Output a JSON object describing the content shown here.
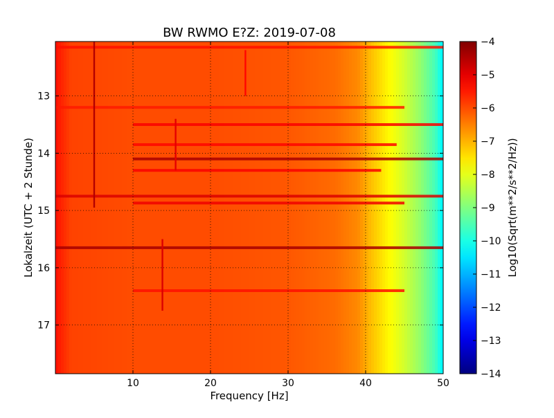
{
  "chart_data": {
    "type": "heatmap",
    "title": "BW RWMO E?Z: 2019-07-08",
    "xlabel": "Frequency [Hz]",
    "ylabel": "Lokalzeit (UTC + 2 Stunde)",
    "xlim": [
      0,
      50
    ],
    "ylim": [
      17.85,
      12.05
    ],
    "y_inverted": true,
    "x_ticks": [
      10,
      20,
      30,
      40,
      50
    ],
    "y_ticks": [
      13,
      14,
      15,
      16,
      17
    ],
    "grid": true,
    "grid_style": "dotted",
    "colorbar": {
      "label": "Log10(Sqrt(m**2/s**2/Hz))",
      "range": [
        -14,
        -4
      ],
      "ticks": [
        -4,
        -5,
        -6,
        -7,
        -8,
        -9,
        -10,
        -11,
        -12,
        -13,
        -14
      ],
      "colormap": "jet"
    },
    "spectrum_profile": [
      {
        "f": 0,
        "v": -5.4
      },
      {
        "f": 2,
        "v": -5.9
      },
      {
        "f": 10,
        "v": -6.0
      },
      {
        "f": 20,
        "v": -6.0
      },
      {
        "f": 30,
        "v": -6.1
      },
      {
        "f": 36,
        "v": -6.3
      },
      {
        "f": 39,
        "v": -6.6
      },
      {
        "f": 41,
        "v": -7.2
      },
      {
        "f": 43,
        "v": -7.7
      },
      {
        "f": 45,
        "v": -8.2
      },
      {
        "f": 47,
        "v": -8.8
      },
      {
        "f": 49,
        "v": -9.6
      },
      {
        "f": 50,
        "v": -10.4
      }
    ],
    "bright_bands": [
      {
        "time": 12.15,
        "f_start": 0,
        "f_end": 50,
        "v": -5.4
      },
      {
        "time": 13.2,
        "f_start": 0,
        "f_end": 45,
        "v": -5.5
      },
      {
        "time": 13.5,
        "f_start": 10,
        "f_end": 50,
        "v": -5.2
      },
      {
        "time": 13.85,
        "f_start": 10,
        "f_end": 44,
        "v": -5.3
      },
      {
        "time": 14.1,
        "f_start": 10,
        "f_end": 50,
        "v": -4.4
      },
      {
        "time": 14.3,
        "f_start": 10,
        "f_end": 42,
        "v": -5.2
      },
      {
        "time": 14.75,
        "f_start": 0,
        "f_end": 50,
        "v": -4.9
      },
      {
        "time": 14.87,
        "f_start": 10,
        "f_end": 45,
        "v": -5.1
      },
      {
        "time": 15.65,
        "f_start": 0,
        "f_end": 50,
        "v": -4.4
      },
      {
        "time": 16.4,
        "f_start": 10,
        "f_end": 45,
        "v": -5.4
      }
    ],
    "vertical_lines": [
      {
        "freq": 5.0,
        "t_start": 12.05,
        "t_end": 14.95,
        "v": -4.5
      },
      {
        "freq": 15.5,
        "t_start": 13.4,
        "t_end": 14.3,
        "v": -5.0
      },
      {
        "freq": 24.5,
        "t_start": 12.2,
        "t_end": 13.0,
        "v": -5.3
      },
      {
        "freq": 13.8,
        "t_start": 15.5,
        "t_end": 16.75,
        "v": -4.9
      }
    ]
  }
}
